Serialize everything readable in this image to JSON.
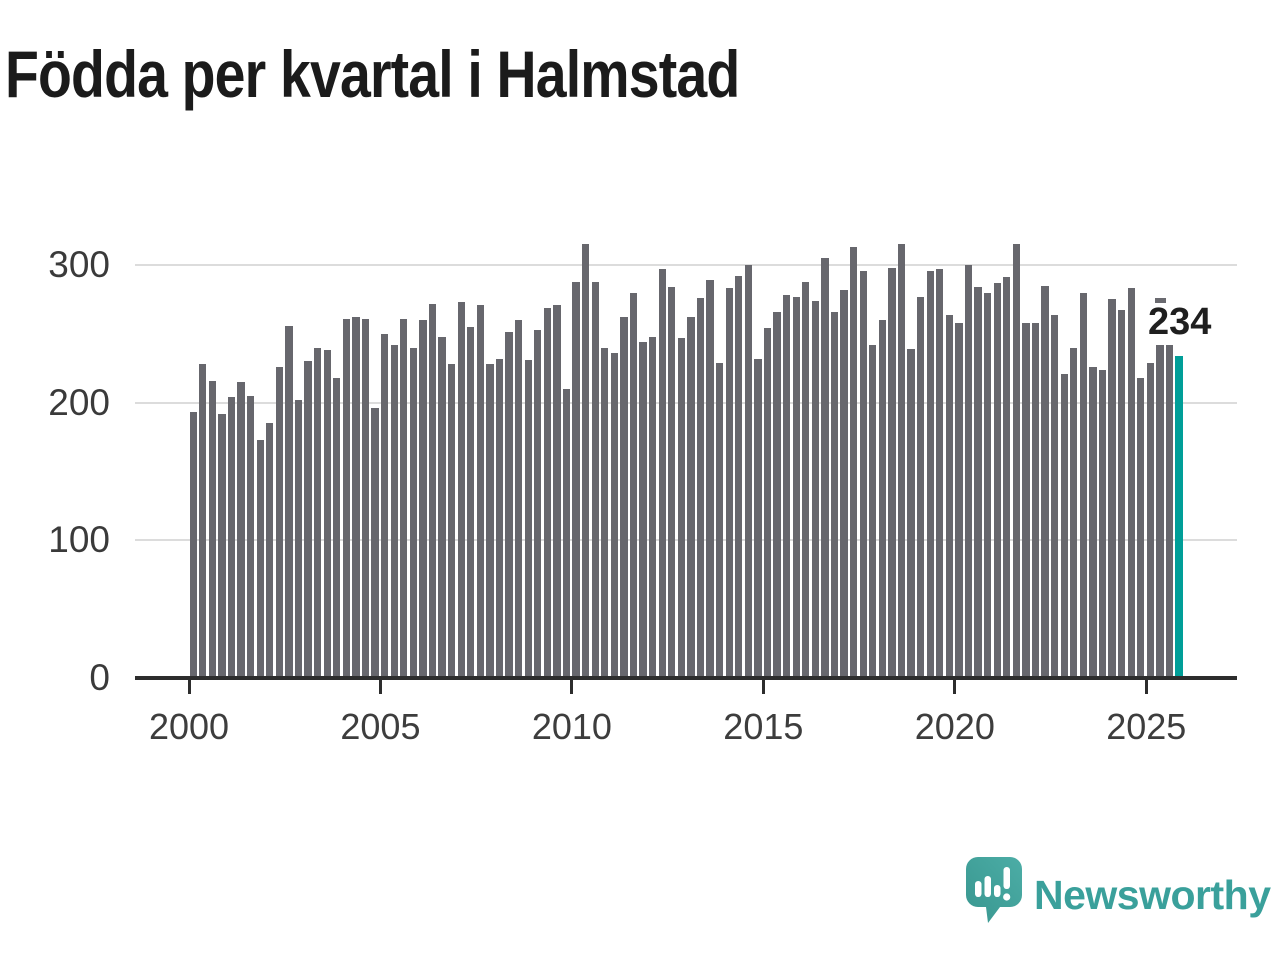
{
  "title": "Födda per kvartal i Halmstad",
  "chart_data": {
    "type": "bar",
    "title": "Födda per kvartal i Halmstad",
    "x_unit": "quarter",
    "x_range_start": "2000",
    "x_range_end": "2025",
    "x_tick_labels": [
      "2000",
      "2005",
      "2010",
      "2015",
      "2020",
      "2025"
    ],
    "y_ticks": [
      0,
      100,
      200,
      300
    ],
    "ylim": [
      0,
      330
    ],
    "grid": "horizontal",
    "legend": "none",
    "bar_color": "#67676d",
    "highlight_color": "#009e98",
    "axis_color": "#2d2d2d",
    "grid_color": "#dcdcdc",
    "values": [
      193,
      228,
      216,
      192,
      204,
      215,
      205,
      173,
      185,
      226,
      256,
      202,
      230,
      240,
      238,
      218,
      261,
      262,
      261,
      196,
      250,
      242,
      261,
      240,
      260,
      272,
      248,
      228,
      273,
      255,
      271,
      228,
      232,
      251,
      260,
      231,
      253,
      269,
      271,
      210,
      288,
      315,
      288,
      240,
      236,
      262,
      280,
      244,
      248,
      297,
      284,
      247,
      262,
      276,
      289,
      229,
      283,
      292,
      300,
      232,
      254,
      266,
      278,
      277,
      288,
      274,
      305,
      266,
      282,
      313,
      296,
      242,
      260,
      298,
      315,
      239,
      277,
      296,
      297,
      264,
      258,
      300,
      284,
      280,
      287,
      291,
      315,
      258,
      258,
      285,
      264,
      221,
      240,
      280,
      226,
      224,
      275,
      267,
      283,
      218,
      229,
      242,
      242,
      234
    ],
    "highlight_index": 103,
    "annotation": {
      "label": "234",
      "value": 234
    }
  },
  "logo": {
    "text": "Newsworthy",
    "color": "#3aa09b"
  }
}
